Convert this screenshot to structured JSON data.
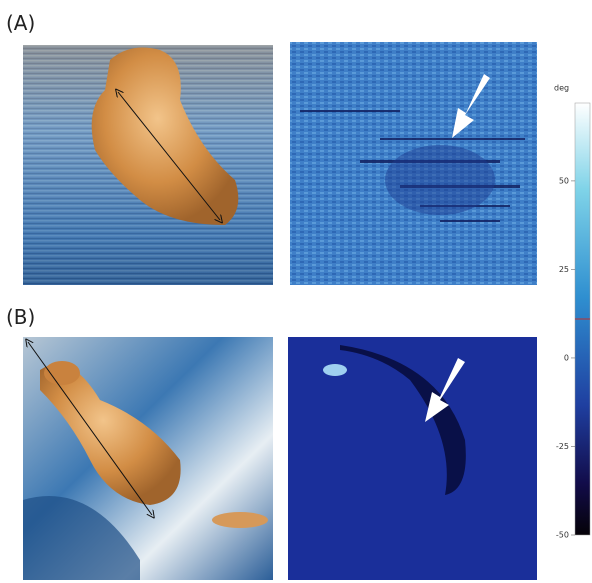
{
  "panels": [
    {
      "label": "(A)"
    },
    {
      "label": "(B)"
    }
  ],
  "colorbar": {
    "label": "deg",
    "lim": [
      -50,
      72
    ],
    "ticks": [
      50,
      25,
      0,
      -25,
      -50
    ],
    "marker": 11
  }
}
